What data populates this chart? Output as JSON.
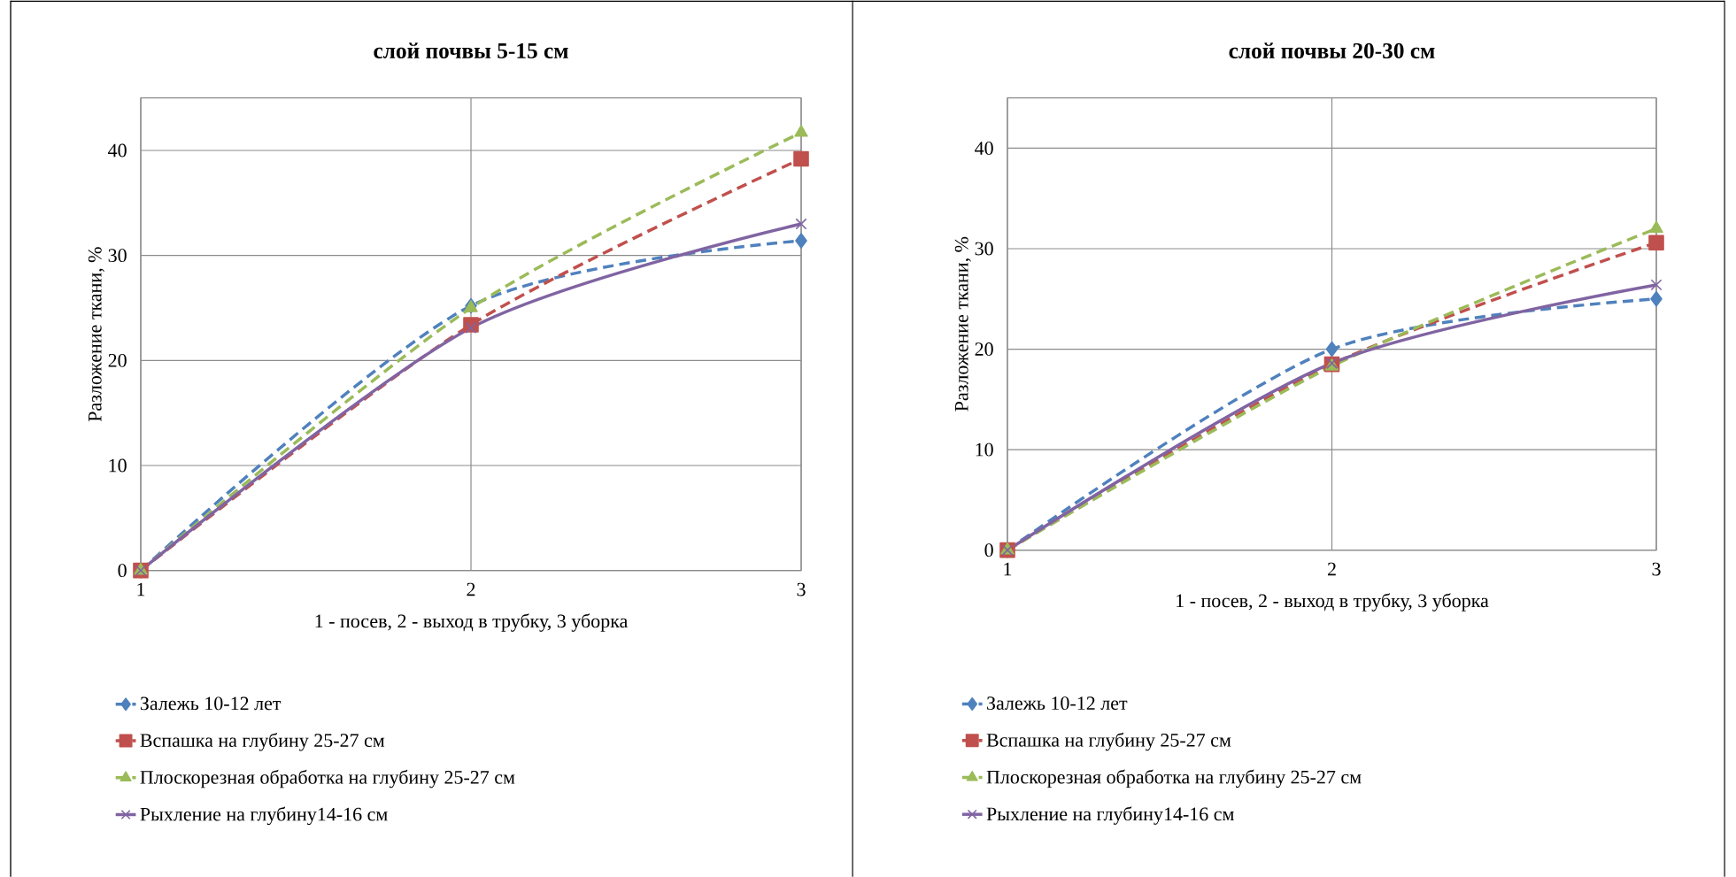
{
  "chart_data": [
    {
      "type": "line",
      "title": "слой почвы 5-15 см",
      "xlabel": "1 - посев, 2 - выход в трубку, 3 уборка",
      "ylabel": "Разложение ткани, %",
      "x": [
        1,
        2,
        3
      ],
      "xlim": [
        1,
        3
      ],
      "xticks": [
        1,
        2,
        3
      ],
      "ylim": [
        0,
        45
      ],
      "yticks": [
        0,
        10,
        20,
        30,
        40
      ],
      "grid": true,
      "legend": "bottom",
      "series": [
        {
          "name": "Залежь 10-12 лет",
          "color": "#4f81bd",
          "marker": "diamond",
          "line_style": "dashed",
          "values": [
            0,
            25.2,
            31.4
          ]
        },
        {
          "name": "Вспашка на глубину 25-27 см",
          "color": "#c0504d",
          "marker": "square",
          "line_style": "dashed",
          "values": [
            0,
            23.4,
            39.2
          ]
        },
        {
          "name": "Плоскорезная обработка на глубину 25-27 см",
          "color": "#9bbb59",
          "marker": "triangle",
          "line_style": "dashed",
          "values": [
            0,
            25.0,
            41.7
          ]
        },
        {
          "name": "Рыхление на глубину14-16 см",
          "color": "#8064a2",
          "marker": "cross",
          "line_style": "solid",
          "values": [
            0,
            23.1,
            33.0
          ]
        }
      ]
    },
    {
      "type": "line",
      "title": "слой почвы 20-30 см",
      "xlabel": "1 - посев, 2 - выход в трубку, 3 уборка",
      "ylabel": "Разложение ткани, %",
      "x": [
        1,
        2,
        3
      ],
      "xlim": [
        1,
        3
      ],
      "xticks": [
        1,
        2,
        3
      ],
      "ylim": [
        0,
        45
      ],
      "yticks": [
        0,
        10,
        20,
        30,
        40
      ],
      "grid": true,
      "legend": "bottom",
      "series": [
        {
          "name": "Залежь 10-12 лет",
          "color": "#4f81bd",
          "marker": "diamond",
          "line_style": "dashed",
          "values": [
            0,
            20.0,
            25.0
          ]
        },
        {
          "name": "Вспашка на глубину 25-27 см",
          "color": "#c0504d",
          "marker": "square",
          "line_style": "dashed",
          "values": [
            0,
            18.5,
            30.6
          ]
        },
        {
          "name": "Плоскорезная обработка на глубину 25-27 см",
          "color": "#9bbb59",
          "marker": "triangle",
          "line_style": "dashed",
          "values": [
            0,
            18.3,
            32.0
          ]
        },
        {
          "name": "Рыхление на глубину14-16 см",
          "color": "#8064a2",
          "marker": "cross",
          "line_style": "solid",
          "values": [
            0,
            18.6,
            26.4
          ]
        }
      ]
    }
  ]
}
